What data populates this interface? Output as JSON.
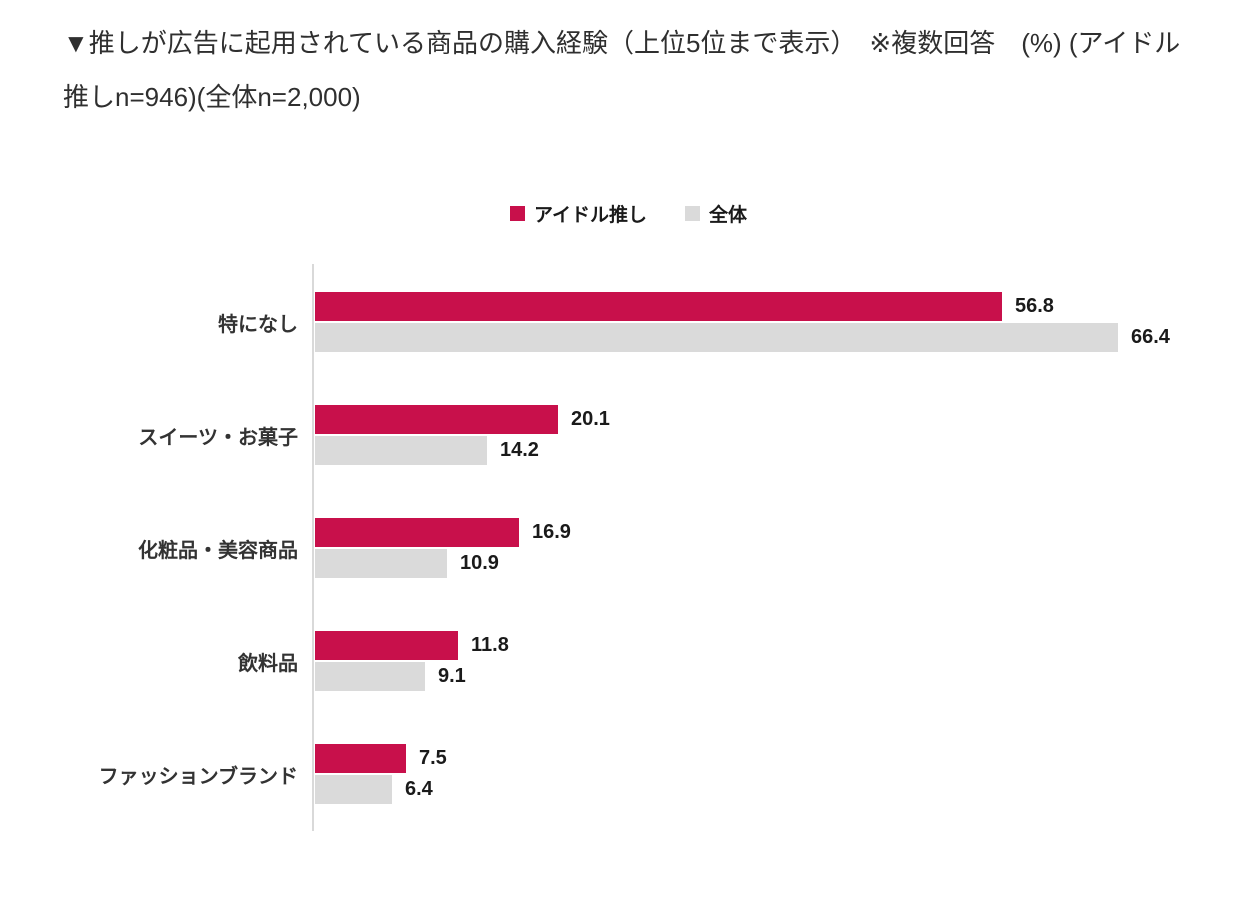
{
  "colors": {
    "series_idol": "#C8104B",
    "series_overall": "#DADADA",
    "axis_line": "#D9D9D9",
    "title_text": "#2F2F2F",
    "category_text": "#333333",
    "value_text": "#1A1A1A",
    "background": "#FFFFFF"
  },
  "chart_data": {
    "type": "bar",
    "orientation": "horizontal",
    "title": "▼推しが広告に起用されている商品の購入経験（上位5位まで表示）　※複数回答　(%) (アイドル推しn=946)(全体n=2,000)",
    "unit": "%",
    "categories": [
      "特になし",
      "スイーツ・お菓子",
      "化粧品・美容商品",
      "飲料品",
      "ファッションブランド"
    ],
    "series": [
      {
        "name": "アイドル推し",
        "n": 946,
        "color": "#C8104B",
        "values": [
          56.8,
          20.1,
          16.9,
          11.8,
          7.5
        ]
      },
      {
        "name": "全体",
        "n": 2000,
        "color": "#DADADA",
        "values": [
          66.4,
          14.2,
          10.9,
          9.1,
          6.4
        ]
      }
    ],
    "value_labels": true,
    "xlim": [
      0,
      70
    ],
    "legend_position": "top",
    "grid": false
  }
}
